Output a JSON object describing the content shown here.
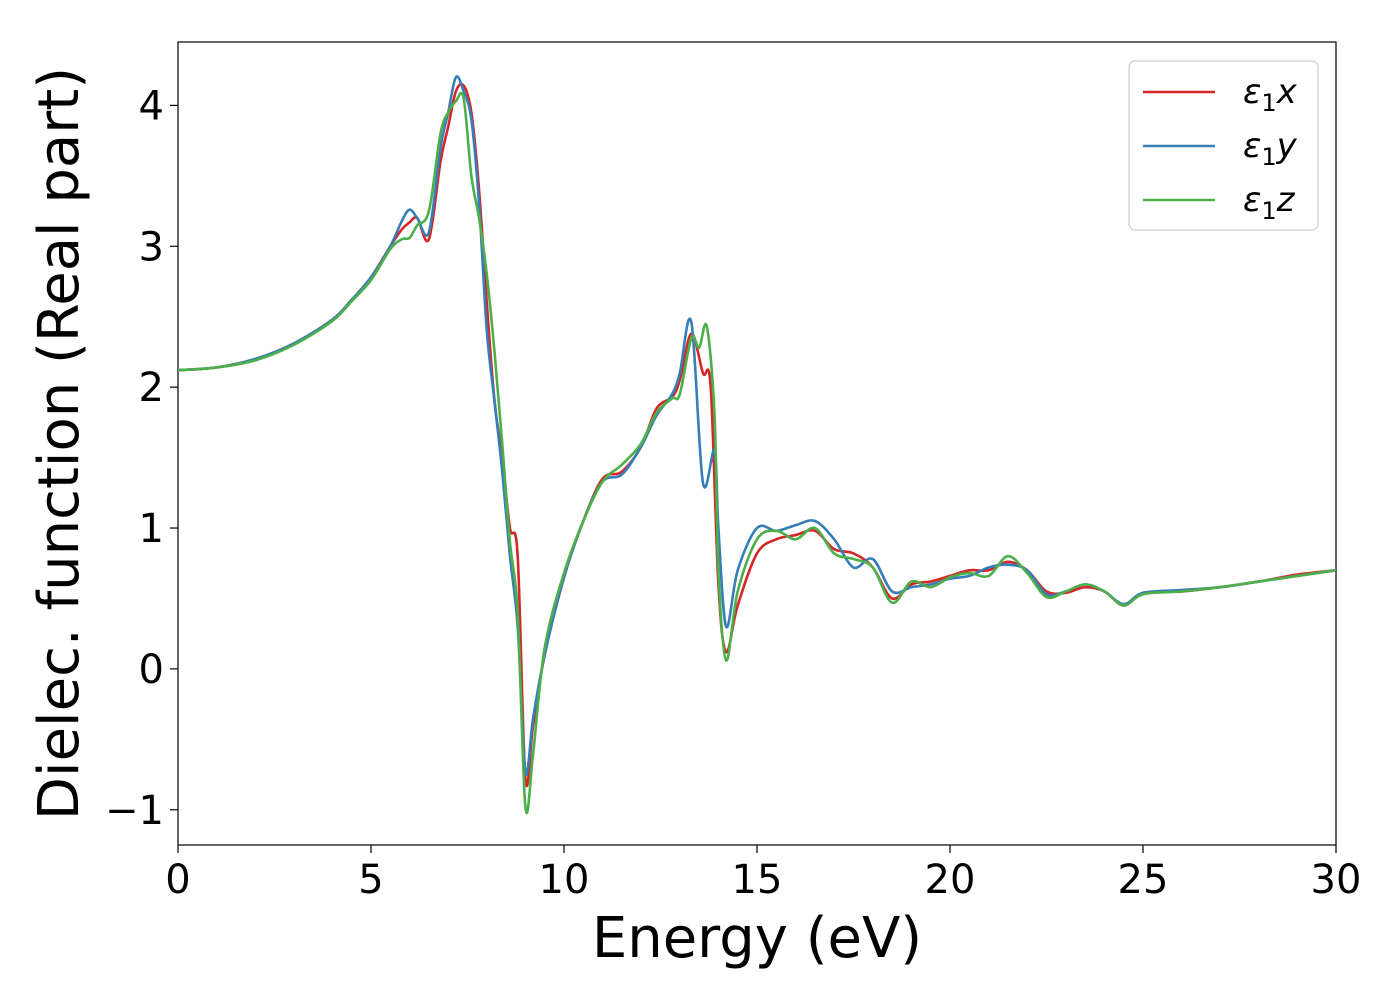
{
  "chart_data": {
    "type": "line",
    "xlabel": "Energy (eV)",
    "ylabel": "Dielec. function (Real part)",
    "xlim": [
      0,
      30
    ],
    "ylim": [
      -1.25,
      4.45
    ],
    "xticks": [
      0,
      5,
      10,
      15,
      20,
      25,
      30
    ],
    "yticks": [
      -1,
      0,
      1,
      2,
      3,
      4
    ],
    "xtick_labels": [
      "0",
      "5",
      "10",
      "15",
      "20",
      "25",
      "30"
    ],
    "ytick_labels": [
      "−1",
      "0",
      "1",
      "2",
      "3",
      "4"
    ],
    "grid": false,
    "legend_position": "top-right",
    "series": [
      {
        "name": "ε₁x",
        "legend_base": "ε",
        "legend_sub": "1",
        "legend_var": "x",
        "color": "#d62728",
        "points": [
          [
            0,
            2.12
          ],
          [
            1,
            2.14
          ],
          [
            2,
            2.2
          ],
          [
            3,
            2.31
          ],
          [
            4,
            2.48
          ],
          [
            4.5,
            2.62
          ],
          [
            5,
            2.78
          ],
          [
            5.5,
            3.0
          ],
          [
            5.8,
            3.12
          ],
          [
            6.0,
            3.17
          ],
          [
            6.2,
            3.2
          ],
          [
            6.5,
            3.05
          ],
          [
            6.8,
            3.6
          ],
          [
            7.0,
            3.85
          ],
          [
            7.2,
            4.1
          ],
          [
            7.4,
            4.14
          ],
          [
            7.6,
            3.95
          ],
          [
            7.8,
            3.4
          ],
          [
            8.0,
            2.6
          ],
          [
            8.2,
            1.9
          ],
          [
            8.4,
            1.5
          ],
          [
            8.6,
            1.0
          ],
          [
            8.8,
            0.8
          ],
          [
            9.0,
            -0.78
          ],
          [
            9.2,
            -0.4
          ],
          [
            9.5,
            0.1
          ],
          [
            10.0,
            0.65
          ],
          [
            10.5,
            1.05
          ],
          [
            11.0,
            1.35
          ],
          [
            11.5,
            1.4
          ],
          [
            12.0,
            1.58
          ],
          [
            12.4,
            1.85
          ],
          [
            12.8,
            1.93
          ],
          [
            13.0,
            2.05
          ],
          [
            13.3,
            2.38
          ],
          [
            13.6,
            2.1
          ],
          [
            13.8,
            2.0
          ],
          [
            14.0,
            0.6
          ],
          [
            14.2,
            0.12
          ],
          [
            14.5,
            0.45
          ],
          [
            15.0,
            0.82
          ],
          [
            15.5,
            0.92
          ],
          [
            16.0,
            0.95
          ],
          [
            16.5,
            0.98
          ],
          [
            17.0,
            0.85
          ],
          [
            17.5,
            0.82
          ],
          [
            18.0,
            0.72
          ],
          [
            18.5,
            0.5
          ],
          [
            19.0,
            0.6
          ],
          [
            19.5,
            0.62
          ],
          [
            20.0,
            0.66
          ],
          [
            20.5,
            0.7
          ],
          [
            21.0,
            0.7
          ],
          [
            21.5,
            0.76
          ],
          [
            22.0,
            0.7
          ],
          [
            22.5,
            0.55
          ],
          [
            23.0,
            0.54
          ],
          [
            23.5,
            0.58
          ],
          [
            24.0,
            0.55
          ],
          [
            24.5,
            0.45
          ],
          [
            25.0,
            0.54
          ],
          [
            26.0,
            0.55
          ],
          [
            27.0,
            0.58
          ],
          [
            28.0,
            0.62
          ],
          [
            29.0,
            0.67
          ],
          [
            30.0,
            0.7
          ]
        ]
      },
      {
        "name": "ε₁y",
        "legend_base": "ε",
        "legend_sub": "1",
        "legend_var": "y",
        "color": "#377eb8",
        "points": [
          [
            0,
            2.12
          ],
          [
            1,
            2.14
          ],
          [
            2,
            2.2
          ],
          [
            3,
            2.31
          ],
          [
            4,
            2.48
          ],
          [
            4.5,
            2.62
          ],
          [
            5,
            2.78
          ],
          [
            5.5,
            3.0
          ],
          [
            5.8,
            3.18
          ],
          [
            6.0,
            3.26
          ],
          [
            6.2,
            3.2
          ],
          [
            6.5,
            3.1
          ],
          [
            6.8,
            3.7
          ],
          [
            7.0,
            3.95
          ],
          [
            7.2,
            4.2
          ],
          [
            7.4,
            4.1
          ],
          [
            7.6,
            3.9
          ],
          [
            7.8,
            3.3
          ],
          [
            8.0,
            2.4
          ],
          [
            8.2,
            1.9
          ],
          [
            8.4,
            1.4
          ],
          [
            8.6,
            0.8
          ],
          [
            8.8,
            0.3
          ],
          [
            9.0,
            -0.73
          ],
          [
            9.2,
            -0.35
          ],
          [
            9.5,
            0.1
          ],
          [
            10.0,
            0.65
          ],
          [
            10.5,
            1.05
          ],
          [
            11.0,
            1.33
          ],
          [
            11.5,
            1.38
          ],
          [
            12.0,
            1.58
          ],
          [
            12.4,
            1.8
          ],
          [
            12.8,
            1.95
          ],
          [
            13.0,
            2.1
          ],
          [
            13.3,
            2.46
          ],
          [
            13.6,
            1.32
          ],
          [
            13.9,
            1.55
          ],
          [
            14.0,
            1.0
          ],
          [
            14.2,
            0.3
          ],
          [
            14.5,
            0.7
          ],
          [
            15.0,
            1.0
          ],
          [
            15.5,
            0.98
          ],
          [
            16.0,
            1.02
          ],
          [
            16.5,
            1.05
          ],
          [
            17.0,
            0.92
          ],
          [
            17.5,
            0.72
          ],
          [
            18.0,
            0.78
          ],
          [
            18.5,
            0.55
          ],
          [
            19.0,
            0.58
          ],
          [
            19.5,
            0.6
          ],
          [
            20.0,
            0.64
          ],
          [
            20.5,
            0.66
          ],
          [
            21.0,
            0.72
          ],
          [
            21.5,
            0.74
          ],
          [
            22.0,
            0.7
          ],
          [
            22.5,
            0.53
          ],
          [
            23.0,
            0.55
          ],
          [
            23.5,
            0.6
          ],
          [
            24.0,
            0.55
          ],
          [
            24.5,
            0.46
          ],
          [
            25.0,
            0.54
          ],
          [
            26.0,
            0.56
          ],
          [
            27.0,
            0.58
          ],
          [
            28.0,
            0.62
          ],
          [
            29.0,
            0.66
          ],
          [
            30.0,
            0.7
          ]
        ]
      },
      {
        "name": "ε₁z",
        "legend_base": "ε",
        "legend_sub": "1",
        "legend_var": "z",
        "color": "#4daf4a",
        "points": [
          [
            0,
            2.12
          ],
          [
            1,
            2.14
          ],
          [
            2,
            2.19
          ],
          [
            3,
            2.3
          ],
          [
            4,
            2.47
          ],
          [
            4.5,
            2.61
          ],
          [
            5,
            2.76
          ],
          [
            5.5,
            2.98
          ],
          [
            5.8,
            3.05
          ],
          [
            6.0,
            3.06
          ],
          [
            6.2,
            3.15
          ],
          [
            6.5,
            3.25
          ],
          [
            6.8,
            3.8
          ],
          [
            7.0,
            3.95
          ],
          [
            7.2,
            4.03
          ],
          [
            7.4,
            4.05
          ],
          [
            7.6,
            3.5
          ],
          [
            7.8,
            3.2
          ],
          [
            8.0,
            2.8
          ],
          [
            8.2,
            2.25
          ],
          [
            8.4,
            1.6
          ],
          [
            8.6,
            0.9
          ],
          [
            8.8,
            0.4
          ],
          [
            9.0,
            -0.98
          ],
          [
            9.2,
            -0.6
          ],
          [
            9.5,
            0.15
          ],
          [
            10.0,
            0.68
          ],
          [
            10.5,
            1.05
          ],
          [
            11.0,
            1.33
          ],
          [
            11.5,
            1.45
          ],
          [
            12.0,
            1.6
          ],
          [
            12.4,
            1.82
          ],
          [
            12.8,
            1.92
          ],
          [
            13.0,
            1.95
          ],
          [
            13.3,
            2.35
          ],
          [
            13.5,
            2.28
          ],
          [
            13.7,
            2.43
          ],
          [
            13.9,
            1.8
          ],
          [
            14.0,
            0.7
          ],
          [
            14.2,
            0.06
          ],
          [
            14.5,
            0.55
          ],
          [
            15.0,
            0.92
          ],
          [
            15.5,
            0.98
          ],
          [
            16.0,
            0.92
          ],
          [
            16.5,
            1.0
          ],
          [
            17.0,
            0.82
          ],
          [
            17.5,
            0.78
          ],
          [
            18.0,
            0.72
          ],
          [
            18.5,
            0.47
          ],
          [
            19.0,
            0.62
          ],
          [
            19.5,
            0.58
          ],
          [
            20.0,
            0.65
          ],
          [
            20.5,
            0.68
          ],
          [
            21.0,
            0.66
          ],
          [
            21.5,
            0.8
          ],
          [
            22.0,
            0.68
          ],
          [
            22.5,
            0.51
          ],
          [
            23.0,
            0.55
          ],
          [
            23.5,
            0.6
          ],
          [
            24.0,
            0.55
          ],
          [
            24.5,
            0.45
          ],
          [
            25.0,
            0.53
          ],
          [
            26.0,
            0.55
          ],
          [
            27.0,
            0.58
          ],
          [
            28.0,
            0.62
          ],
          [
            29.0,
            0.66
          ],
          [
            30.0,
            0.7
          ]
        ]
      }
    ]
  }
}
